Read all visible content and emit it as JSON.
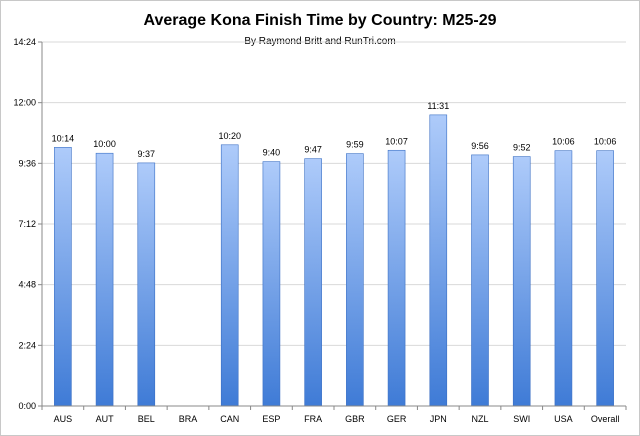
{
  "chart_data": {
    "type": "bar",
    "title": "Average Kona Finish Time by Country: M25-29",
    "subtitle": "By Raymond Britt and RunTri.com",
    "xlabel": "",
    "ylabel": "",
    "categories": [
      "AUS",
      "AUT",
      "BEL",
      "BRA",
      "CAN",
      "ESP",
      "FRA",
      "GBR",
      "GER",
      "JPN",
      "NZL",
      "SWI",
      "USA",
      "Overall"
    ],
    "values_minutes": [
      614,
      600,
      577,
      null,
      620,
      580,
      587,
      599,
      607,
      691,
      596,
      592,
      606,
      606
    ],
    "data_labels": [
      "10:14",
      "10:00",
      "9:37",
      "",
      "10:20",
      "9:40",
      "9:47",
      "9:59",
      "10:07",
      "11:31",
      "9:56",
      "9:52",
      "10:06",
      "10:06"
    ],
    "yticks": [
      "0:00",
      "2:24",
      "4:48",
      "7:12",
      "9:36",
      "12:00",
      "14:24"
    ],
    "yticks_minutes": [
      0,
      144,
      288,
      432,
      576,
      720,
      864
    ],
    "ylim_minutes": [
      0,
      864
    ],
    "grid": true,
    "legend": "none",
    "bar_color_top": "#aecbfa",
    "bar_color_bottom": "#3f7bd6",
    "bar_stroke": "#3a6fc4",
    "grid_color": "#d9d9d9"
  }
}
